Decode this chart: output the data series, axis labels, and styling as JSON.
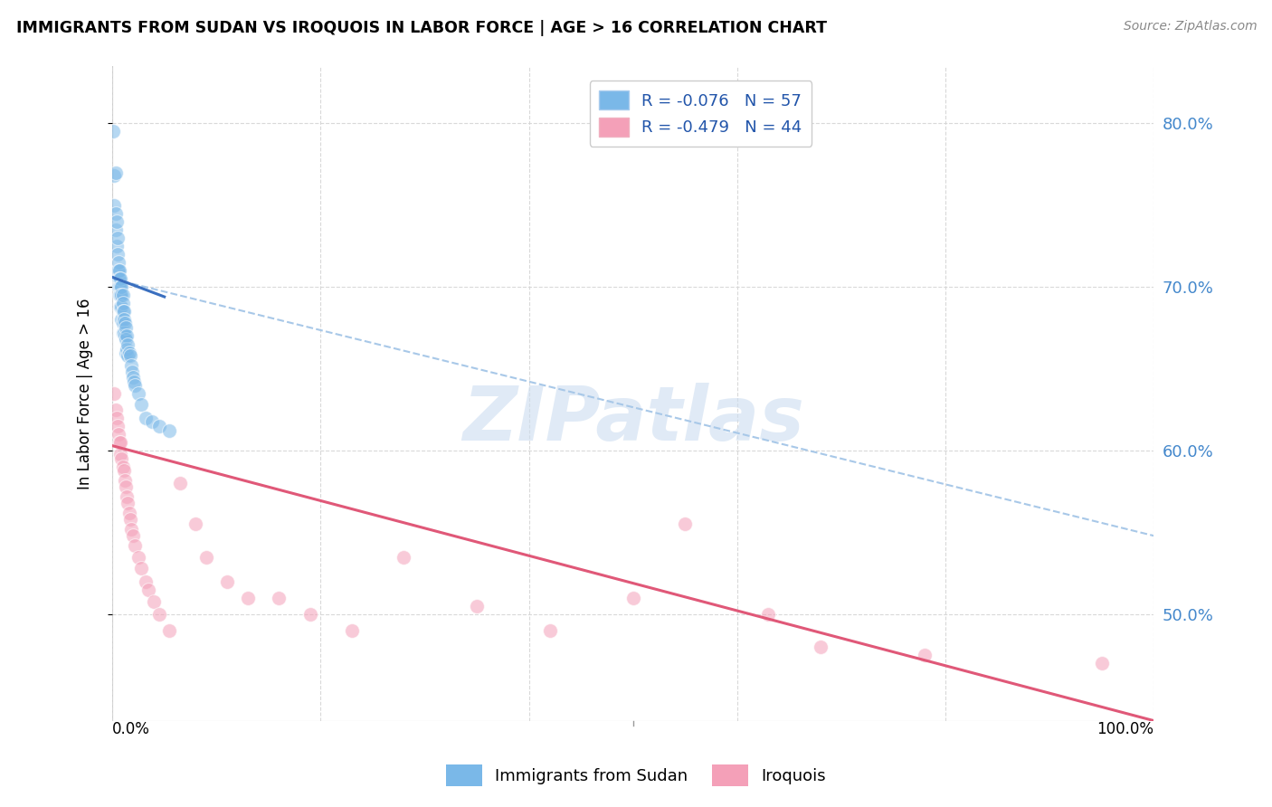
{
  "title": "IMMIGRANTS FROM SUDAN VS IROQUOIS IN LABOR FORCE | AGE > 16 CORRELATION CHART",
  "source": "Source: ZipAtlas.com",
  "ylabel": "In Labor Force | Age > 16",
  "xlim": [
    0.0,
    1.0
  ],
  "ylim": [
    0.435,
    0.835
  ],
  "yticks": [
    0.5,
    0.6,
    0.7,
    0.8
  ],
  "ytick_labels": [
    "50.0%",
    "60.0%",
    "70.0%",
    "80.0%"
  ],
  "sudan_R": -0.076,
  "sudan_N": 57,
  "iroquois_R": -0.479,
  "iroquois_N": 44,
  "sudan_color": "#7ab8e8",
  "iroquois_color": "#f4a0b8",
  "sudan_line_color": "#3a6fbf",
  "iroquois_line_color": "#e05878",
  "dashed_line_color": "#a8c8e8",
  "legend_label_sudan": "Immigrants from Sudan",
  "legend_label_iroquois": "Iroquois",
  "watermark_text": "ZIPatlas",
  "sudan_line_x0": 0.0,
  "sudan_line_x1": 0.05,
  "sudan_line_y0": 0.706,
  "sudan_line_y1": 0.694,
  "iroquois_line_x0": 0.0,
  "iroquois_line_x1": 1.0,
  "iroquois_line_y0": 0.603,
  "iroquois_line_y1": 0.435,
  "dashed_line_x0": 0.0,
  "dashed_line_x1": 1.0,
  "dashed_line_y0": 0.705,
  "dashed_line_y1": 0.548,
  "sudan_pts_x": [
    0.001,
    0.002,
    0.002,
    0.003,
    0.003,
    0.003,
    0.004,
    0.004,
    0.005,
    0.005,
    0.005,
    0.006,
    0.006,
    0.006,
    0.006,
    0.007,
    0.007,
    0.007,
    0.007,
    0.008,
    0.008,
    0.008,
    0.008,
    0.009,
    0.009,
    0.009,
    0.009,
    0.01,
    0.01,
    0.01,
    0.01,
    0.01,
    0.011,
    0.011,
    0.011,
    0.012,
    0.012,
    0.013,
    0.013,
    0.013,
    0.014,
    0.014,
    0.015,
    0.015,
    0.016,
    0.017,
    0.018,
    0.019,
    0.02,
    0.021,
    0.022,
    0.025,
    0.028,
    0.032,
    0.038,
    0.045,
    0.055
  ],
  "sudan_pts_y": [
    0.795,
    0.768,
    0.75,
    0.77,
    0.745,
    0.735,
    0.74,
    0.725,
    0.73,
    0.72,
    0.71,
    0.715,
    0.71,
    0.705,
    0.7,
    0.71,
    0.705,
    0.7,
    0.695,
    0.705,
    0.7,
    0.695,
    0.688,
    0.7,
    0.695,
    0.688,
    0.68,
    0.695,
    0.69,
    0.685,
    0.678,
    0.672,
    0.685,
    0.68,
    0.672,
    0.678,
    0.67,
    0.675,
    0.668,
    0.66,
    0.67,
    0.662,
    0.665,
    0.658,
    0.66,
    0.658,
    0.652,
    0.648,
    0.645,
    0.642,
    0.64,
    0.635,
    0.628,
    0.62,
    0.618,
    0.615,
    0.612
  ],
  "iroquois_pts_x": [
    0.002,
    0.003,
    0.004,
    0.005,
    0.006,
    0.007,
    0.008,
    0.008,
    0.009,
    0.01,
    0.011,
    0.012,
    0.013,
    0.014,
    0.015,
    0.016,
    0.017,
    0.018,
    0.02,
    0.022,
    0.025,
    0.028,
    0.032,
    0.035,
    0.04,
    0.045,
    0.055,
    0.065,
    0.08,
    0.09,
    0.11,
    0.13,
    0.16,
    0.19,
    0.23,
    0.28,
    0.35,
    0.42,
    0.5,
    0.55,
    0.63,
    0.68,
    0.78,
    0.95
  ],
  "iroquois_pts_y": [
    0.635,
    0.625,
    0.62,
    0.615,
    0.61,
    0.605,
    0.605,
    0.598,
    0.595,
    0.59,
    0.588,
    0.582,
    0.578,
    0.572,
    0.568,
    0.562,
    0.558,
    0.552,
    0.548,
    0.542,
    0.535,
    0.528,
    0.52,
    0.515,
    0.508,
    0.5,
    0.49,
    0.58,
    0.555,
    0.535,
    0.52,
    0.51,
    0.51,
    0.5,
    0.49,
    0.535,
    0.505,
    0.49,
    0.51,
    0.555,
    0.5,
    0.48,
    0.475,
    0.47
  ]
}
